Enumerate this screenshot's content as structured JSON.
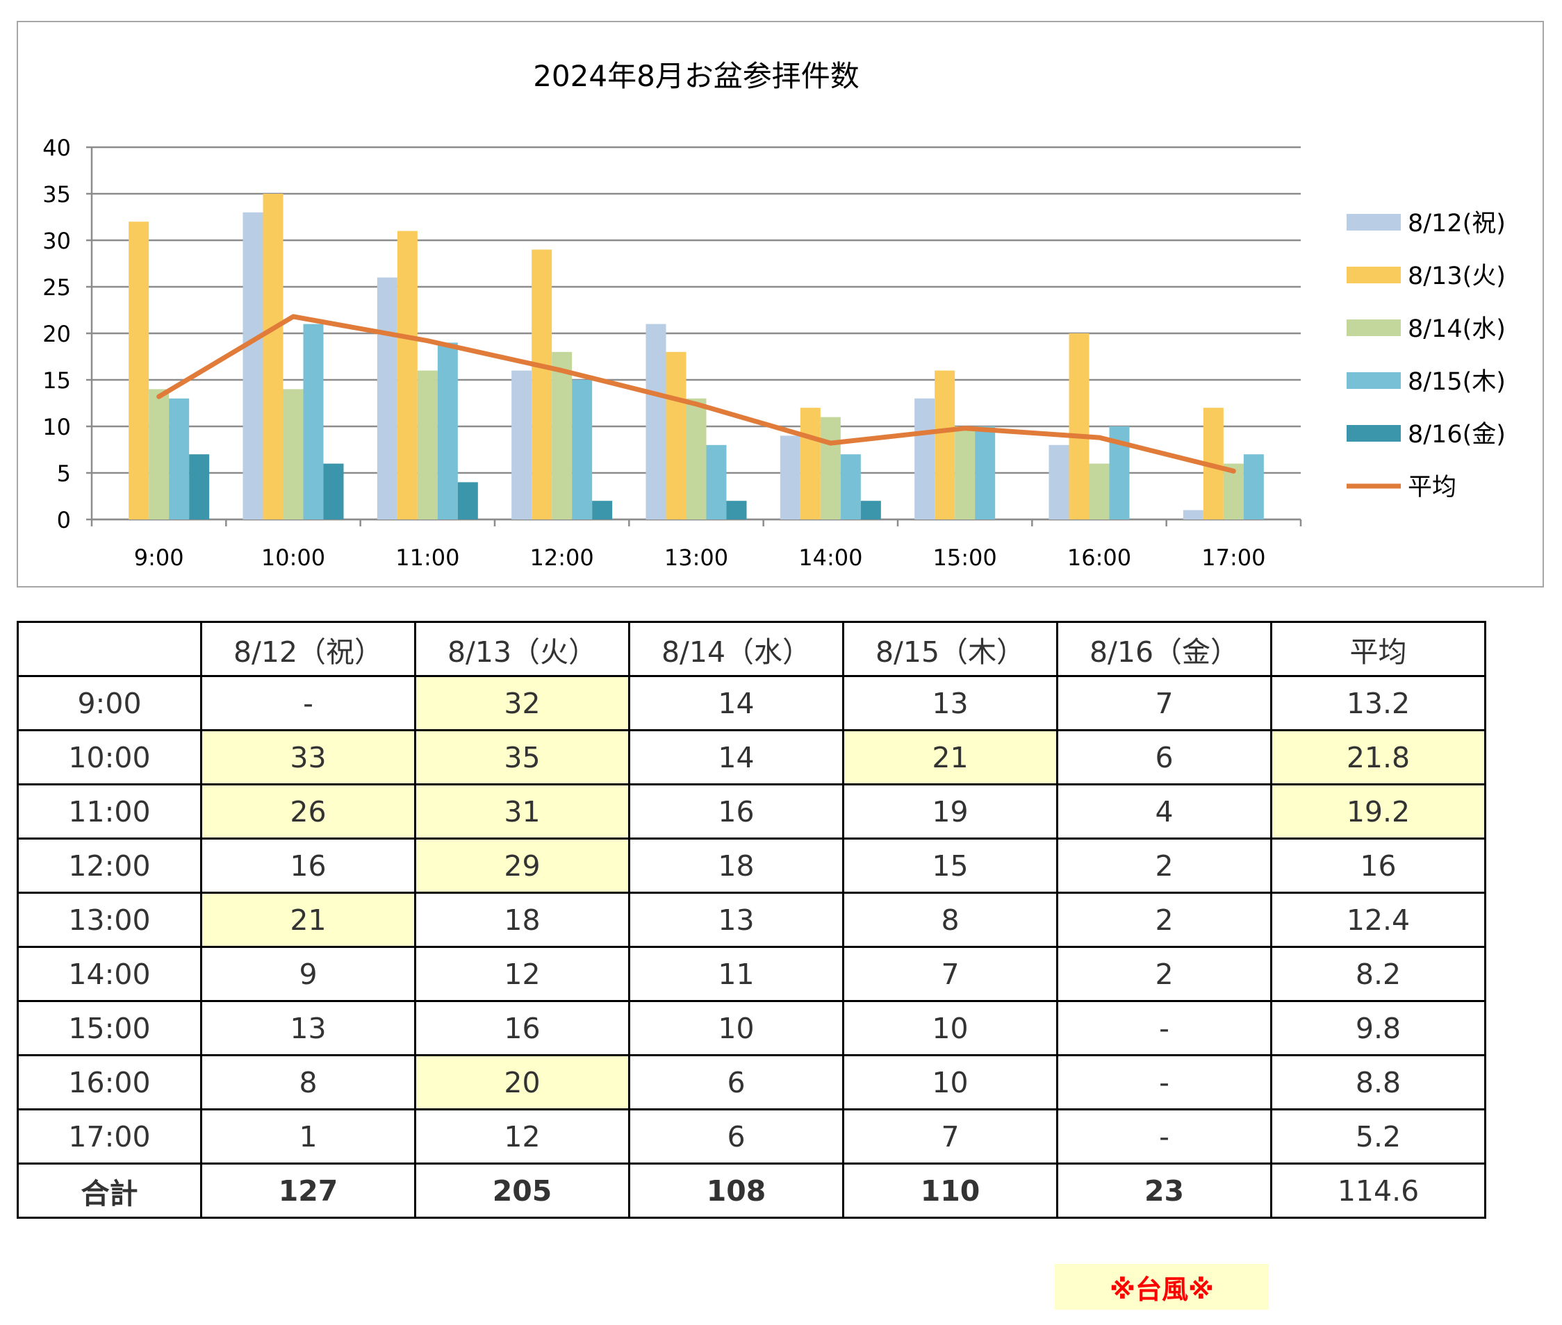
{
  "chart_data": {
    "type": "bar",
    "title": "2024年8月お盆参拝件数",
    "categories": [
      "9:00",
      "10:00",
      "11:00",
      "12:00",
      "13:00",
      "14:00",
      "15:00",
      "16:00",
      "17:00"
    ],
    "series": [
      {
        "name": "8/12(祝)",
        "color": "#b9cde5",
        "values": [
          null,
          33,
          26,
          16,
          21,
          9,
          13,
          8,
          1
        ]
      },
      {
        "name": "8/13(火)",
        "color": "#f9cb5c",
        "values": [
          32,
          35,
          31,
          29,
          18,
          12,
          16,
          20,
          12
        ]
      },
      {
        "name": "8/14(水)",
        "color": "#c3d69b",
        "values": [
          14,
          14,
          16,
          18,
          13,
          11,
          10,
          6,
          6
        ]
      },
      {
        "name": "8/15(木)",
        "color": "#78c0d5",
        "values": [
          13,
          21,
          19,
          15,
          8,
          7,
          10,
          10,
          7
        ]
      },
      {
        "name": "8/16(金)",
        "color": "#3c96ab",
        "values": [
          7,
          6,
          4,
          2,
          2,
          2,
          null,
          null,
          null
        ]
      }
    ],
    "line_series": {
      "name": "平均",
      "color": "#e07b39",
      "values": [
        13.2,
        21.8,
        19.2,
        16,
        12.4,
        8.2,
        9.8,
        8.8,
        5.2
      ]
    },
    "ylim": [
      0,
      40
    ],
    "yticks": [
      "0",
      "5",
      "10",
      "15",
      "20",
      "25",
      "30",
      "35",
      "40"
    ],
    "grid": true,
    "legend_position": "right"
  },
  "table": {
    "header": [
      "",
      "8/12（祝）",
      "8/13（火）",
      "8/14（水）",
      "8/15（木）",
      "8/16（金）",
      "平均"
    ],
    "rows": [
      {
        "time": "9:00",
        "cells": [
          "-",
          "32",
          "14",
          "13",
          "7",
          "13.2"
        ],
        "highlight": [
          false,
          true,
          false,
          false,
          false,
          false
        ]
      },
      {
        "time": "10:00",
        "cells": [
          "33",
          "35",
          "14",
          "21",
          "6",
          "21.8"
        ],
        "highlight": [
          true,
          true,
          false,
          true,
          false,
          true
        ]
      },
      {
        "time": "11:00",
        "cells": [
          "26",
          "31",
          "16",
          "19",
          "4",
          "19.2"
        ],
        "highlight": [
          true,
          true,
          false,
          false,
          false,
          true
        ]
      },
      {
        "time": "12:00",
        "cells": [
          "16",
          "29",
          "18",
          "15",
          "2",
          "16"
        ],
        "highlight": [
          false,
          true,
          false,
          false,
          false,
          false
        ]
      },
      {
        "time": "13:00",
        "cells": [
          "21",
          "18",
          "13",
          "8",
          "2",
          "12.4"
        ],
        "highlight": [
          true,
          false,
          false,
          false,
          false,
          false
        ]
      },
      {
        "time": "14:00",
        "cells": [
          "9",
          "12",
          "11",
          "7",
          "2",
          "8.2"
        ],
        "highlight": [
          false,
          false,
          false,
          false,
          false,
          false
        ]
      },
      {
        "time": "15:00",
        "cells": [
          "13",
          "16",
          "10",
          "10",
          "-",
          "9.8"
        ],
        "highlight": [
          false,
          false,
          false,
          false,
          false,
          false
        ]
      },
      {
        "time": "16:00",
        "cells": [
          "8",
          "20",
          "6",
          "10",
          "-",
          "8.8"
        ],
        "highlight": [
          false,
          true,
          false,
          false,
          false,
          false
        ]
      },
      {
        "time": "17:00",
        "cells": [
          "1",
          "12",
          "6",
          "7",
          "-",
          "5.2"
        ],
        "highlight": [
          false,
          false,
          false,
          false,
          false,
          false
        ]
      }
    ],
    "total": {
      "label": "合計",
      "cells": [
        "127",
        "205",
        "108",
        "110",
        "23",
        "114.6"
      ]
    }
  },
  "note": "※台風※"
}
